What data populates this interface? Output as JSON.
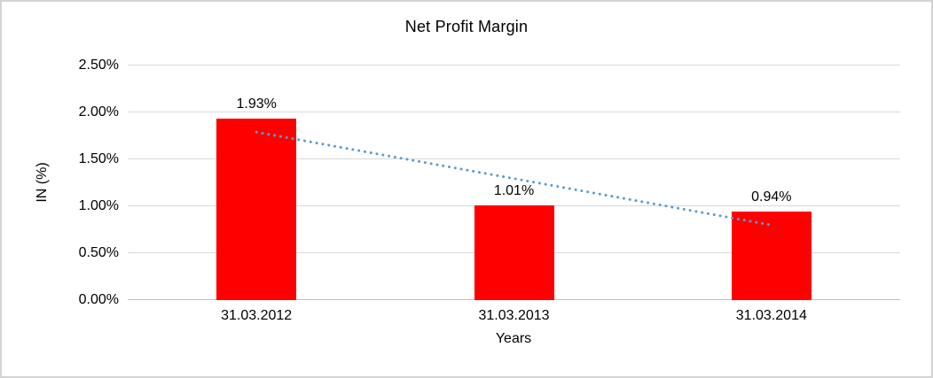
{
  "window": {
    "background_color": "#FFFFFF",
    "border_color": "#D3D3D3"
  },
  "chart_data": {
    "type": "bar",
    "title": "Net Profit Margin",
    "categories": [
      "31.03.2012",
      "31.03.2013",
      "31.03.2014"
    ],
    "values": [
      1.93,
      1.01,
      0.94
    ],
    "data_labels": [
      "1.93%",
      "1.01%",
      "0.94%"
    ],
    "xlabel": "Years",
    "ylabel": "IN (%)",
    "ylim": [
      0,
      2.5
    ],
    "yticks": [
      {
        "value": 0.0,
        "label": "0.00%"
      },
      {
        "value": 0.5,
        "label": "0.50%"
      },
      {
        "value": 1.0,
        "label": "1.00%"
      },
      {
        "value": 1.5,
        "label": "1.50%"
      },
      {
        "value": 2.0,
        "label": "2.00%"
      },
      {
        "value": 2.5,
        "label": "2.50%"
      }
    ],
    "grid": true,
    "legend": "none",
    "bar_color": "#FF0000",
    "gridline_color": "#D9D9D9",
    "axis_line_color": "#BFBFBF",
    "text_color": "#000000",
    "trendline": {
      "shape": "linear",
      "style": "dotted",
      "color": "#5B9BD5",
      "start_value": 1.79,
      "end_value": 0.8
    }
  }
}
